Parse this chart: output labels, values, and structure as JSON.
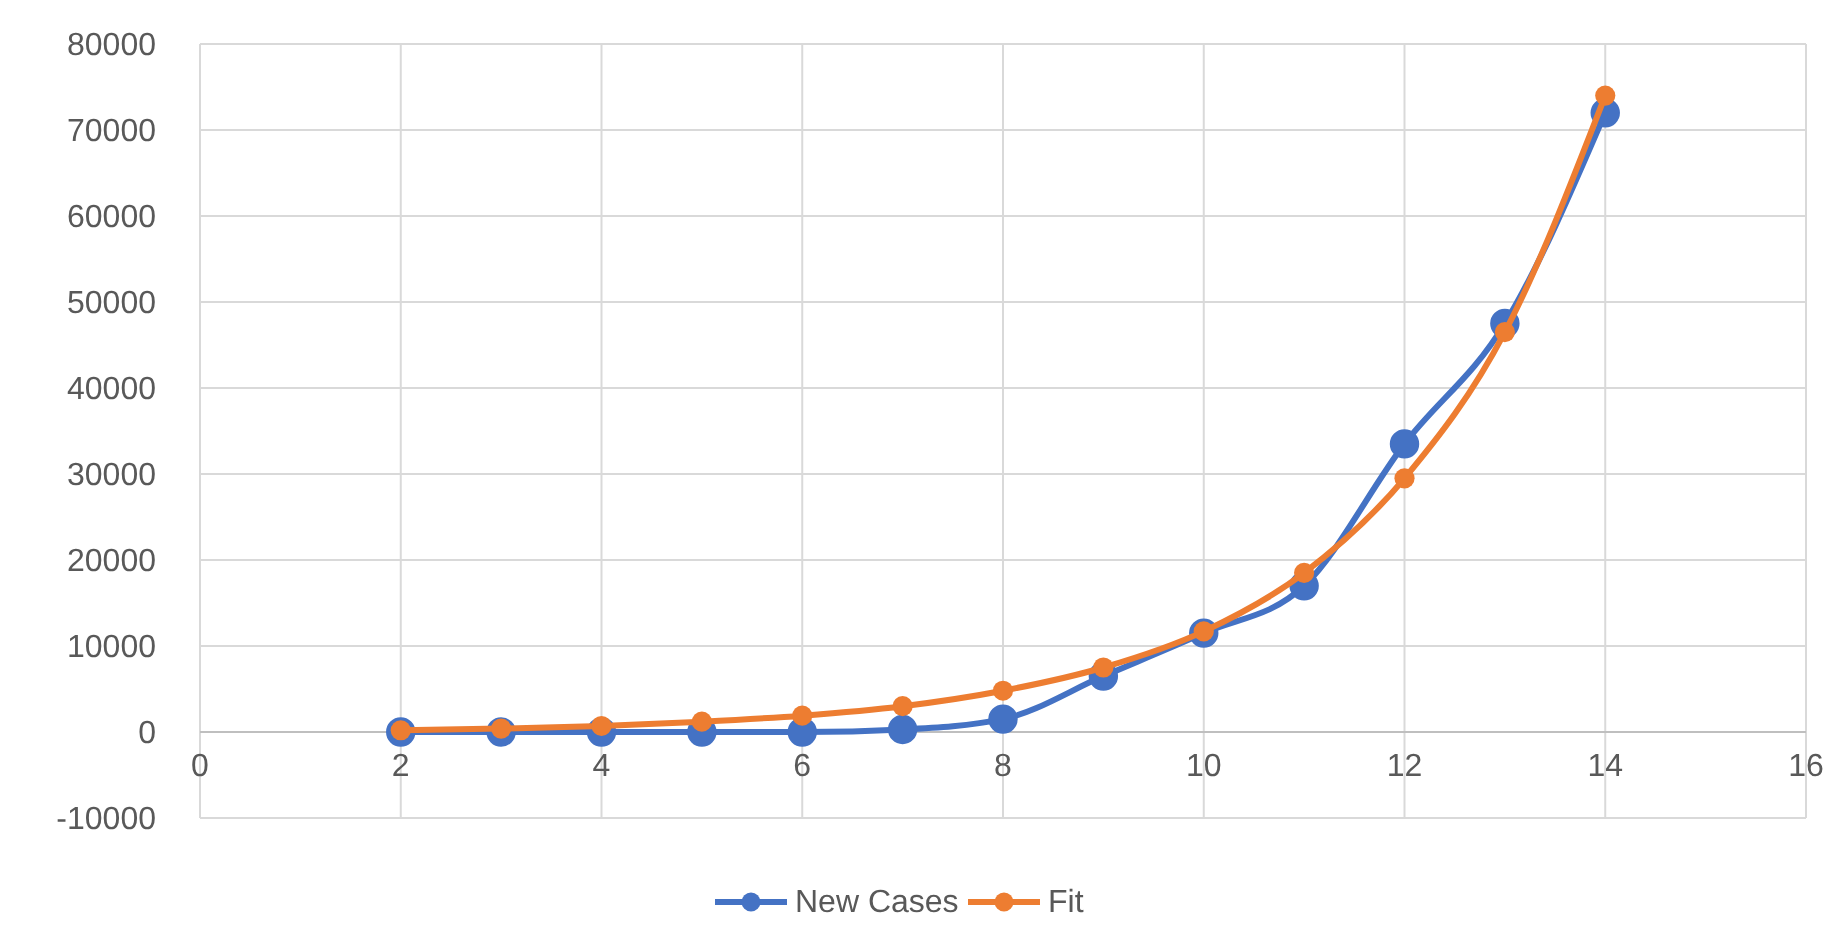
{
  "chart_data": {
    "type": "line",
    "x": [
      2,
      3,
      4,
      5,
      6,
      7,
      8,
      9,
      10,
      11,
      12,
      13,
      14
    ],
    "series": [
      {
        "name": "New Cases",
        "color": "#4472c4",
        "values": [
          0,
          0,
          0,
          0,
          0,
          300,
          1500,
          6500,
          11500,
          17000,
          33500,
          47500,
          72000
        ]
      },
      {
        "name": "Fit",
        "color": "#ed7d31",
        "values": [
          200,
          400,
          700,
          1200,
          1900,
          3000,
          4800,
          7500,
          11700,
          18500,
          29500,
          46500,
          74000
        ]
      }
    ],
    "xlim": [
      0,
      16
    ],
    "xticks": [
      0,
      2,
      4,
      6,
      8,
      10,
      12,
      14,
      16
    ],
    "ylim": [
      -10000,
      80000
    ],
    "yticks": [
      -10000,
      0,
      10000,
      20000,
      30000,
      40000,
      50000,
      60000,
      70000,
      80000
    ],
    "grid": true,
    "legend": "bottom",
    "marker": "circle",
    "line_style": "solid"
  }
}
